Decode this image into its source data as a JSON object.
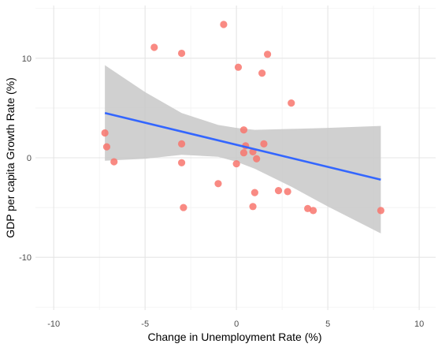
{
  "chart_data": {
    "type": "scatter",
    "title": "",
    "xlabel": "Change in Unemployment Rate (%)",
    "ylabel": "GDP per capita Growth Rate (%)",
    "xlim": [
      -11,
      10.9
    ],
    "ylim": [
      -15.3,
      15.3
    ],
    "x_ticks": [
      -10,
      -5,
      0,
      5,
      10
    ],
    "x_tick_labels": [
      "-10",
      "-5",
      "0",
      "5",
      "10"
    ],
    "y_ticks": [
      -10,
      0,
      10
    ],
    "y_tick_labels": [
      "-10",
      "0",
      "10"
    ],
    "grid": true,
    "legend": "none",
    "colors": {
      "points": "#f8766d",
      "fit_line": "#3366ff",
      "confidence_band": "#c8c8c8",
      "grid_major": "#e5e5e5",
      "grid_minor": "#f2f2f2"
    },
    "points": [
      {
        "x": -0.7,
        "y": 13.4
      },
      {
        "x": -4.5,
        "y": 11.1
      },
      {
        "x": -3.0,
        "y": 10.5
      },
      {
        "x": 1.7,
        "y": 10.4
      },
      {
        "x": 0.1,
        "y": 9.1
      },
      {
        "x": 1.4,
        "y": 8.5
      },
      {
        "x": 3.0,
        "y": 5.5
      },
      {
        "x": 0.4,
        "y": 2.8
      },
      {
        "x": -7.2,
        "y": 2.5
      },
      {
        "x": -3.0,
        "y": 1.4
      },
      {
        "x": 1.5,
        "y": 1.4
      },
      {
        "x": 0.5,
        "y": 1.2
      },
      {
        "x": -7.1,
        "y": 1.1
      },
      {
        "x": 0.4,
        "y": 0.5
      },
      {
        "x": 0.9,
        "y": 0.6
      },
      {
        "x": 1.1,
        "y": -0.1
      },
      {
        "x": -6.7,
        "y": -0.4
      },
      {
        "x": -3.0,
        "y": -0.5
      },
      {
        "x": 0.0,
        "y": -0.6
      },
      {
        "x": -1.0,
        "y": -2.6
      },
      {
        "x": 1.0,
        "y": -3.5
      },
      {
        "x": 2.3,
        "y": -3.3
      },
      {
        "x": 2.8,
        "y": -3.4
      },
      {
        "x": -2.9,
        "y": -5.0
      },
      {
        "x": 0.9,
        "y": -4.9
      },
      {
        "x": 3.9,
        "y": -5.1
      },
      {
        "x": 4.2,
        "y": -5.3
      },
      {
        "x": 7.9,
        "y": -5.3
      }
    ],
    "fit_line": {
      "x": [
        -7.2,
        7.9
      ],
      "y": [
        4.5,
        -2.2
      ]
    },
    "confidence_band": {
      "x": [
        -7.2,
        -5.0,
        -3.0,
        -1.0,
        0.0,
        1.0,
        3.0,
        5.0,
        7.9
      ],
      "upper": [
        9.3,
        6.6,
        4.5,
        3.3,
        3.0,
        2.8,
        2.9,
        3.0,
        3.2
      ],
      "lower": [
        -0.3,
        -0.1,
        0.3,
        0.1,
        -0.4,
        -1.1,
        -2.9,
        -4.9,
        -7.6
      ]
    }
  }
}
